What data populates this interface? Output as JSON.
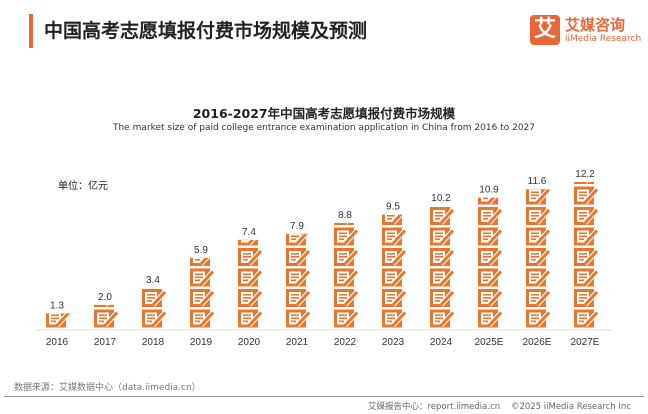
{
  "header": {
    "title": "中国高考志愿填报付费市场规模及预测",
    "logo_mark": "艾",
    "logo_cn": "艾媒咨询",
    "logo_en": "iiMedia Research"
  },
  "chart_data": {
    "type": "bar",
    "style": "pictogram",
    "title": "2016-2027年中国高考志愿填报付费市场规模",
    "subtitle": "The market size of paid college entrance examination application in China from 2016 to 2027",
    "unit_label": "单位：亿元",
    "categories": [
      "2016",
      "2017",
      "2018",
      "2019",
      "2020",
      "2021",
      "2022",
      "2023",
      "2024",
      "2025E",
      "2026E",
      "2027E"
    ],
    "values": [
      1.3,
      2.0,
      3.4,
      5.9,
      7.4,
      7.9,
      8.8,
      9.5,
      10.2,
      10.9,
      11.6,
      12.2
    ],
    "ylim": [
      0,
      12.2
    ],
    "grid": false,
    "color": "#e8762c",
    "icon": "form-with-pencil-icon"
  },
  "footer": {
    "source": "数据来源：艾媒数据中心（data.iimedia.cn）",
    "report": "艾媒报告中心：report.iimedia.cn",
    "copyright": "©2025  iiMedia Research  Inc"
  }
}
